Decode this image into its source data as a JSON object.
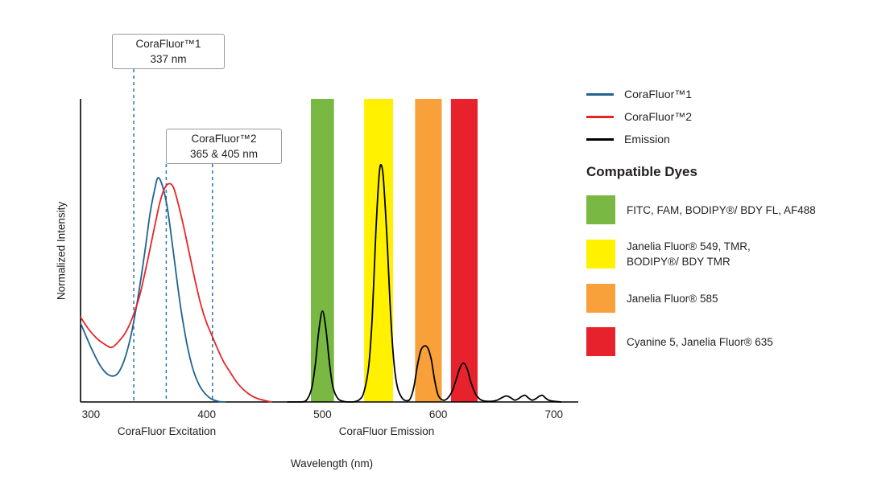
{
  "figure": {
    "background": "#FFFFFF",
    "y_axis_label": "Normalized Intensity",
    "x_axis_label": "Wavelength (nm)",
    "x_region_labels": {
      "excitation": "CoraFluor Excitation",
      "emission": "CoraFluor Emission"
    },
    "callouts": [
      {
        "lines": [
          "CoraFluor™1",
          "337 nm"
        ]
      },
      {
        "lines": [
          "CoraFluor™2",
          "365 & 405 nm"
        ]
      }
    ]
  },
  "legend": {
    "items": [
      {
        "key": "corafluor1",
        "label": "CoraFluor™1",
        "color": "#1F6391"
      },
      {
        "key": "corafluor2",
        "label": "CoraFluor™2",
        "color": "#E62528"
      },
      {
        "key": "emission",
        "label": "Emission",
        "color": "#000000"
      }
    ]
  },
  "compatible_dyes": {
    "title": "Compatible Dyes",
    "items": [
      {
        "key": "green",
        "color": "#79B943",
        "label": "FITC, FAM, BODIPY®/ BDY FL, AF488"
      },
      {
        "key": "yellow",
        "color": "#FFF100",
        "label": "Janelia Fluor® 549, TMR,\nBODIPY®/ BDY TMR"
      },
      {
        "key": "orange",
        "color": "#F8A13B",
        "label": "Janelia Fluor® 585"
      },
      {
        "key": "red",
        "color": "#E8222D",
        "label": "Cyanine 5, Janelia Fluor® 635"
      }
    ]
  },
  "chart_data": {
    "type": "line",
    "title": "CoraFluor excitation and emission spectra with compatible dye windows",
    "xlabel": "Wavelength (nm)",
    "ylabel": "Normalized Intensity",
    "xlim": [
      291,
      721
    ],
    "ylim": [
      0,
      1
    ],
    "x_ticks": [
      300,
      400,
      500,
      600,
      700
    ],
    "grid": false,
    "legend_position": "top-right",
    "marker_color": "#2F74A8",
    "excitation_markers": [
      {
        "nm": 337,
        "label": "CoraFluor™1 337 nm"
      },
      {
        "nm": 365,
        "label": "CoraFluor™2 365 nm"
      },
      {
        "nm": 405,
        "label": "CoraFluor™2 405 nm"
      }
    ],
    "bands": [
      {
        "key": "green",
        "color": "#79B943",
        "from_nm": 490,
        "to_nm": 510,
        "dyes": "FITC, FAM, BODIPY/ BDY FL, AF488"
      },
      {
        "key": "yellow",
        "color": "#FFF100",
        "from_nm": 536,
        "to_nm": 561,
        "dyes": "Janelia Fluor 549, TMR, BODIPY/ BDY TMR"
      },
      {
        "key": "orange",
        "color": "#F8A13B",
        "from_nm": 580,
        "to_nm": 603,
        "dyes": "Janelia Fluor 585"
      },
      {
        "key": "red",
        "color": "#E8222D",
        "from_nm": 611,
        "to_nm": 634,
        "dyes": "Cyanine 5, Janelia Fluor 635"
      }
    ],
    "series": [
      {
        "key": "corafluor1-excitation",
        "name": "CoraFluor™1",
        "color": "#1F6391",
        "points": [
          [
            291,
            0.26
          ],
          [
            300,
            0.18
          ],
          [
            308,
            0.12
          ],
          [
            315,
            0.09
          ],
          [
            322,
            0.09
          ],
          [
            328,
            0.13
          ],
          [
            334,
            0.21
          ],
          [
            340,
            0.33
          ],
          [
            346,
            0.48
          ],
          [
            351,
            0.62
          ],
          [
            355,
            0.7
          ],
          [
            358,
            0.74
          ],
          [
            362,
            0.71
          ],
          [
            366,
            0.64
          ],
          [
            370,
            0.53
          ],
          [
            374,
            0.41
          ],
          [
            378,
            0.3
          ],
          [
            383,
            0.19
          ],
          [
            388,
            0.11
          ],
          [
            393,
            0.06
          ],
          [
            398,
            0.03
          ],
          [
            404,
            0.01
          ],
          [
            410,
            0.002
          ],
          [
            416,
            0
          ]
        ]
      },
      {
        "key": "corafluor2-excitation",
        "name": "CoraFluor™2",
        "color": "#E62528",
        "points": [
          [
            291,
            0.28
          ],
          [
            298,
            0.24
          ],
          [
            305,
            0.21
          ],
          [
            312,
            0.19
          ],
          [
            318,
            0.18
          ],
          [
            324,
            0.2
          ],
          [
            330,
            0.23
          ],
          [
            336,
            0.28
          ],
          [
            342,
            0.35
          ],
          [
            348,
            0.45
          ],
          [
            354,
            0.56
          ],
          [
            359,
            0.65
          ],
          [
            363,
            0.7
          ],
          [
            367,
            0.72
          ],
          [
            371,
            0.71
          ],
          [
            375,
            0.66
          ],
          [
            380,
            0.58
          ],
          [
            385,
            0.49
          ],
          [
            390,
            0.4
          ],
          [
            395,
            0.32
          ],
          [
            400,
            0.26
          ],
          [
            405,
            0.215
          ],
          [
            410,
            0.17
          ],
          [
            415,
            0.13
          ],
          [
            420,
            0.1
          ],
          [
            426,
            0.065
          ],
          [
            432,
            0.04
          ],
          [
            438,
            0.022
          ],
          [
            444,
            0.011
          ],
          [
            450,
            0.005
          ],
          [
            456,
            0
          ]
        ]
      },
      {
        "key": "emission",
        "name": "Emission",
        "color": "#000000",
        "points": [
          [
            470,
            0
          ],
          [
            482,
            0
          ],
          [
            487,
            0.01
          ],
          [
            491,
            0.05
          ],
          [
            494,
            0.13
          ],
          [
            497,
            0.24
          ],
          [
            500,
            0.3
          ],
          [
            503,
            0.24
          ],
          [
            506,
            0.13
          ],
          [
            509,
            0.05
          ],
          [
            513,
            0.013
          ],
          [
            518,
            0.002
          ],
          [
            526,
            0
          ],
          [
            532,
            0.008
          ],
          [
            536,
            0.035
          ],
          [
            540,
            0.12
          ],
          [
            543,
            0.28
          ],
          [
            546,
            0.55
          ],
          [
            549,
            0.75
          ],
          [
            551,
            0.78
          ],
          [
            553,
            0.72
          ],
          [
            556,
            0.52
          ],
          [
            559,
            0.28
          ],
          [
            562,
            0.12
          ],
          [
            565,
            0.045
          ],
          [
            569,
            0.012
          ],
          [
            573,
            0.004
          ],
          [
            576,
            0.012
          ],
          [
            579,
            0.05
          ],
          [
            582,
            0.12
          ],
          [
            585,
            0.17
          ],
          [
            588,
            0.185
          ],
          [
            591,
            0.178
          ],
          [
            594,
            0.14
          ],
          [
            597,
            0.07
          ],
          [
            600,
            0.022
          ],
          [
            604,
            0.006
          ],
          [
            608,
            0.012
          ],
          [
            612,
            0.035
          ],
          [
            616,
            0.08
          ],
          [
            619,
            0.115
          ],
          [
            622,
            0.128
          ],
          [
            625,
            0.11
          ],
          [
            628,
            0.068
          ],
          [
            632,
            0.028
          ],
          [
            636,
            0.009
          ],
          [
            640,
            0.003
          ],
          [
            646,
            0.002
          ],
          [
            651,
            0.006
          ],
          [
            655,
            0.014
          ],
          [
            659,
            0.02
          ],
          [
            663,
            0.013
          ],
          [
            666,
            0.006
          ],
          [
            669,
            0.01
          ],
          [
            672,
            0.018
          ],
          [
            675,
            0.022
          ],
          [
            678,
            0.013
          ],
          [
            681,
            0.006
          ],
          [
            684,
            0.01
          ],
          [
            687,
            0.018
          ],
          [
            690,
            0.022
          ],
          [
            693,
            0.012
          ],
          [
            696,
            0.005
          ],
          [
            700,
            0.002
          ],
          [
            706,
            0
          ]
        ]
      }
    ]
  }
}
